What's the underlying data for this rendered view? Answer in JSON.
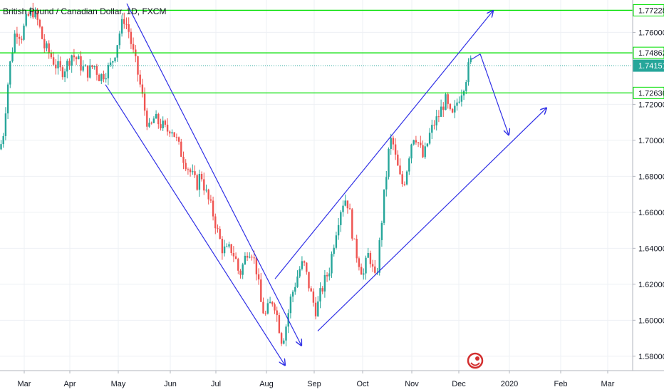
{
  "chart_data": {
    "type": "candlestick",
    "title": "British Pound / Canadian Dollar, 1D, FXCM",
    "ylim": [
      1.572,
      1.778
    ],
    "y_ticks": [
      "1.76000",
      "1.72000",
      "1.70000",
      "1.68000",
      "1.66000",
      "1.64000",
      "1.62000",
      "1.60000",
      "1.58000"
    ],
    "x_ticks": [
      "Mar",
      "Apr",
      "May",
      "Jun",
      "Jul",
      "Aug",
      "Sep",
      "Oct",
      "Nov",
      "Dec",
      "2020",
      "Feb",
      "Mar"
    ],
    "levels": [
      {
        "label": "1.77228",
        "value": 1.77228,
        "style": "solid"
      },
      {
        "label": "1.74862",
        "value": 1.74862,
        "style": "solid"
      },
      {
        "label": "1.74151",
        "value": 1.74151,
        "style": "dotted",
        "current": true
      },
      {
        "label": "1.72636",
        "value": 1.72636,
        "style": "solid"
      }
    ],
    "price_path": [
      [
        0,
        1.695
      ],
      [
        5,
        1.705
      ],
      [
        10,
        1.728
      ],
      [
        15,
        1.745
      ],
      [
        22,
        1.762
      ],
      [
        30,
        1.758
      ],
      [
        38,
        1.768
      ],
      [
        46,
        1.772
      ],
      [
        54,
        1.765
      ],
      [
        62,
        1.752
      ],
      [
        70,
        1.748
      ],
      [
        78,
        1.742
      ],
      [
        86,
        1.738
      ],
      [
        94,
        1.742
      ],
      [
        100,
        1.748
      ],
      [
        108,
        1.745
      ],
      [
        116,
        1.74
      ],
      [
        124,
        1.738
      ],
      [
        132,
        1.742
      ],
      [
        140,
        1.735
      ],
      [
        148,
        1.738
      ],
      [
        156,
        1.742
      ],
      [
        162,
        1.75
      ],
      [
        168,
        1.76
      ],
      [
        174,
        1.768
      ],
      [
        180,
        1.762
      ],
      [
        186,
        1.75
      ],
      [
        192,
        1.74
      ],
      [
        198,
        1.728
      ],
      [
        204,
        1.715
      ],
      [
        210,
        1.705
      ],
      [
        216,
        1.712
      ],
      [
        222,
        1.71
      ],
      [
        228,
        1.708
      ],
      [
        234,
        1.705
      ],
      [
        240,
        1.708
      ],
      [
        246,
        1.702
      ],
      [
        252,
        1.695
      ],
      [
        258,
        1.69
      ],
      [
        264,
        1.685
      ],
      [
        270,
        1.68
      ],
      [
        276,
        1.675
      ],
      [
        282,
        1.682
      ],
      [
        288,
        1.672
      ],
      [
        294,
        1.665
      ],
      [
        300,
        1.658
      ],
      [
        306,
        1.648
      ],
      [
        312,
        1.64
      ],
      [
        318,
        1.638
      ],
      [
        324,
        1.64
      ],
      [
        330,
        1.635
      ],
      [
        336,
        1.625
      ],
      [
        342,
        1.632
      ],
      [
        348,
        1.64
      ],
      [
        354,
        1.638
      ],
      [
        360,
        1.628
      ],
      [
        366,
        1.61
      ],
      [
        372,
        1.602
      ],
      [
        378,
        1.608
      ],
      [
        384,
        1.612
      ],
      [
        390,
        1.6
      ],
      [
        396,
        1.588
      ],
      [
        402,
        1.598
      ],
      [
        408,
        1.612
      ],
      [
        414,
        1.62
      ],
      [
        420,
        1.628
      ],
      [
        426,
        1.632
      ],
      [
        432,
        1.622
      ],
      [
        438,
        1.612
      ],
      [
        444,
        1.605
      ],
      [
        450,
        1.615
      ],
      [
        456,
        1.622
      ],
      [
        462,
        1.628
      ],
      [
        468,
        1.642
      ],
      [
        474,
        1.655
      ],
      [
        480,
        1.665
      ],
      [
        486,
        1.668
      ],
      [
        490,
        1.662
      ],
      [
        494,
        1.65
      ],
      [
        498,
        1.64
      ],
      [
        502,
        1.635
      ],
      [
        506,
        1.63
      ],
      [
        510,
        1.625
      ],
      [
        514,
        1.632
      ],
      [
        518,
        1.638
      ],
      [
        522,
        1.63
      ],
      [
        526,
        1.622
      ],
      [
        530,
        1.63
      ],
      [
        534,
        1.648
      ],
      [
        538,
        1.665
      ],
      [
        542,
        1.68
      ],
      [
        546,
        1.695
      ],
      [
        550,
        1.702
      ],
      [
        554,
        1.692
      ],
      [
        558,
        1.685
      ],
      [
        562,
        1.678
      ],
      [
        566,
        1.675
      ],
      [
        570,
        1.682
      ],
      [
        574,
        1.692
      ],
      [
        578,
        1.7
      ],
      [
        582,
        1.704
      ],
      [
        586,
        1.7
      ],
      [
        590,
        1.695
      ],
      [
        594,
        1.69
      ],
      [
        598,
        1.695
      ],
      [
        602,
        1.702
      ],
      [
        606,
        1.706
      ],
      [
        610,
        1.71
      ],
      [
        614,
        1.712
      ],
      [
        618,
        1.716
      ],
      [
        622,
        1.72
      ],
      [
        626,
        1.722
      ],
      [
        630,
        1.716
      ],
      [
        634,
        1.712
      ],
      [
        638,
        1.716
      ],
      [
        642,
        1.722
      ],
      [
        646,
        1.726
      ],
      [
        650,
        1.73
      ],
      [
        654,
        1.735
      ],
      [
        658,
        1.741
      ],
      [
        662,
        1.745
      ]
    ],
    "trend_lines": [
      {
        "from": [
          148,
          1.731
        ],
        "to": [
          400,
          1.575
        ],
        "arrow": true
      },
      {
        "from": [
          178,
          1.776
        ],
        "to": [
          423,
          1.586
        ],
        "arrow": true
      },
      {
        "from": [
          386,
          1.623
        ],
        "to": [
          692,
          1.772
        ],
        "arrow": true
      },
      {
        "from": [
          446,
          1.594
        ],
        "to": [
          767,
          1.718
        ],
        "arrow": true
      },
      {
        "from": [
          662,
          1.745
        ],
        "to": [
          674,
          1.748
        ],
        "arrow": false
      },
      {
        "from": [
          674,
          1.748
        ],
        "to": [
          714,
          1.703
        ],
        "arrow": true
      }
    ],
    "colors": {
      "up": "#26a69a",
      "down": "#ef5350",
      "level": "#00e000",
      "trend": "#3030e6",
      "grid": "#eef0f4",
      "axis_text": "#131722",
      "current_label_bg": "#26a69a"
    },
    "grid": true,
    "logo_icon": "tradingview-logo-icon"
  }
}
